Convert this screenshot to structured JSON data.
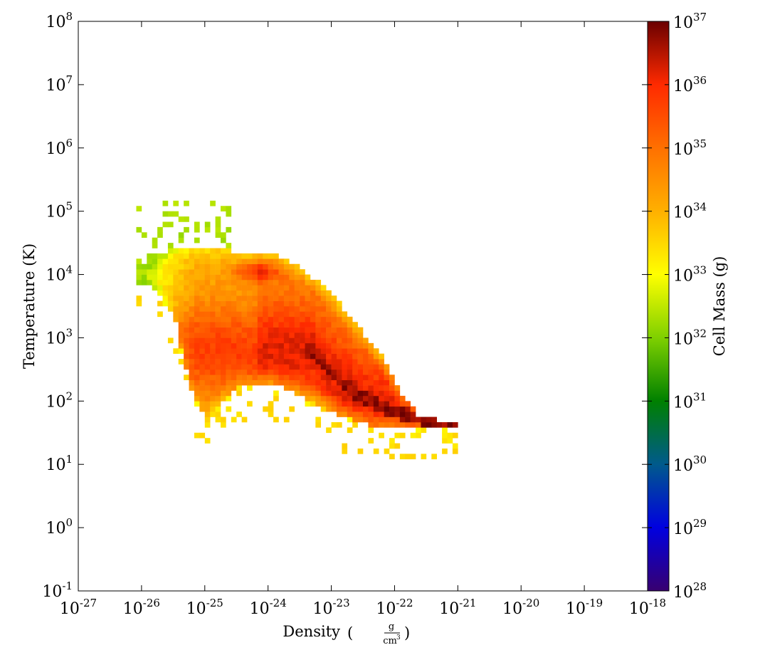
{
  "chart_data": {
    "type": "heatmap",
    "title": "",
    "xlabel": "Density",
    "xlabel_unit": {
      "numerator": "g",
      "denominator": "cm",
      "denominator_exponent": "3"
    },
    "ylabel": "Temperature  (K)",
    "colorbar_label": "Cell Mass  (g)",
    "x_scale": "log",
    "y_scale": "log",
    "xlim_exponents": [
      -27,
      -18
    ],
    "ylim_exponents": [
      -1,
      8
    ],
    "colorbar_range_exponents": [
      28,
      37
    ],
    "x_ticks": [
      {
        "base": "10",
        "exp": "-27"
      },
      {
        "base": "10",
        "exp": "-26"
      },
      {
        "base": "10",
        "exp": "-25"
      },
      {
        "base": "10",
        "exp": "-24"
      },
      {
        "base": "10",
        "exp": "-23"
      },
      {
        "base": "10",
        "exp": "-22"
      },
      {
        "base": "10",
        "exp": "-21"
      },
      {
        "base": "10",
        "exp": "-20"
      },
      {
        "base": "10",
        "exp": "-19"
      },
      {
        "base": "10",
        "exp": "-18"
      }
    ],
    "y_ticks": [
      {
        "base": "10",
        "exp": "-1"
      },
      {
        "base": "10",
        "exp": "0"
      },
      {
        "base": "10",
        "exp": "1"
      },
      {
        "base": "10",
        "exp": "2"
      },
      {
        "base": "10",
        "exp": "3"
      },
      {
        "base": "10",
        "exp": "4"
      },
      {
        "base": "10",
        "exp": "5"
      },
      {
        "base": "10",
        "exp": "6"
      },
      {
        "base": "10",
        "exp": "7"
      },
      {
        "base": "10",
        "exp": "8"
      }
    ],
    "colorbar_ticks": [
      {
        "base": "10",
        "exp": "28"
      },
      {
        "base": "10",
        "exp": "29"
      },
      {
        "base": "10",
        "exp": "30"
      },
      {
        "base": "10",
        "exp": "31"
      },
      {
        "base": "10",
        "exp": "32"
      },
      {
        "base": "10",
        "exp": "33"
      },
      {
        "base": "10",
        "exp": "34"
      },
      {
        "base": "10",
        "exp": "35"
      },
      {
        "base": "10",
        "exp": "36"
      },
      {
        "base": "10",
        "exp": "37"
      }
    ],
    "colormap": [
      "#380070",
      "#0000e0",
      "#005a8c",
      "#008000",
      "#7fd000",
      "#ffff00",
      "#ffb000",
      "#ff7000",
      "#ff2a00",
      "#6a0000"
    ],
    "grid": false,
    "distribution_features": [
      {
        "name": "cold dense track",
        "points": [
          [
            -23.3,
            2.8
          ],
          [
            -23.0,
            2.45
          ],
          [
            -22.6,
            2.1
          ],
          [
            -22.2,
            1.9
          ],
          [
            -21.8,
            1.78
          ],
          [
            -21.4,
            1.68
          ],
          [
            -21.1,
            1.6
          ]
        ],
        "log_mass": [
          35.8,
          37.0,
          36.8,
          36.5,
          36.0,
          35.8,
          35.6
        ]
      },
      {
        "name": "warm peak",
        "points": [
          [
            -24.2,
            4.05
          ]
        ],
        "log_mass": [
          37.0
        ]
      }
    ]
  }
}
